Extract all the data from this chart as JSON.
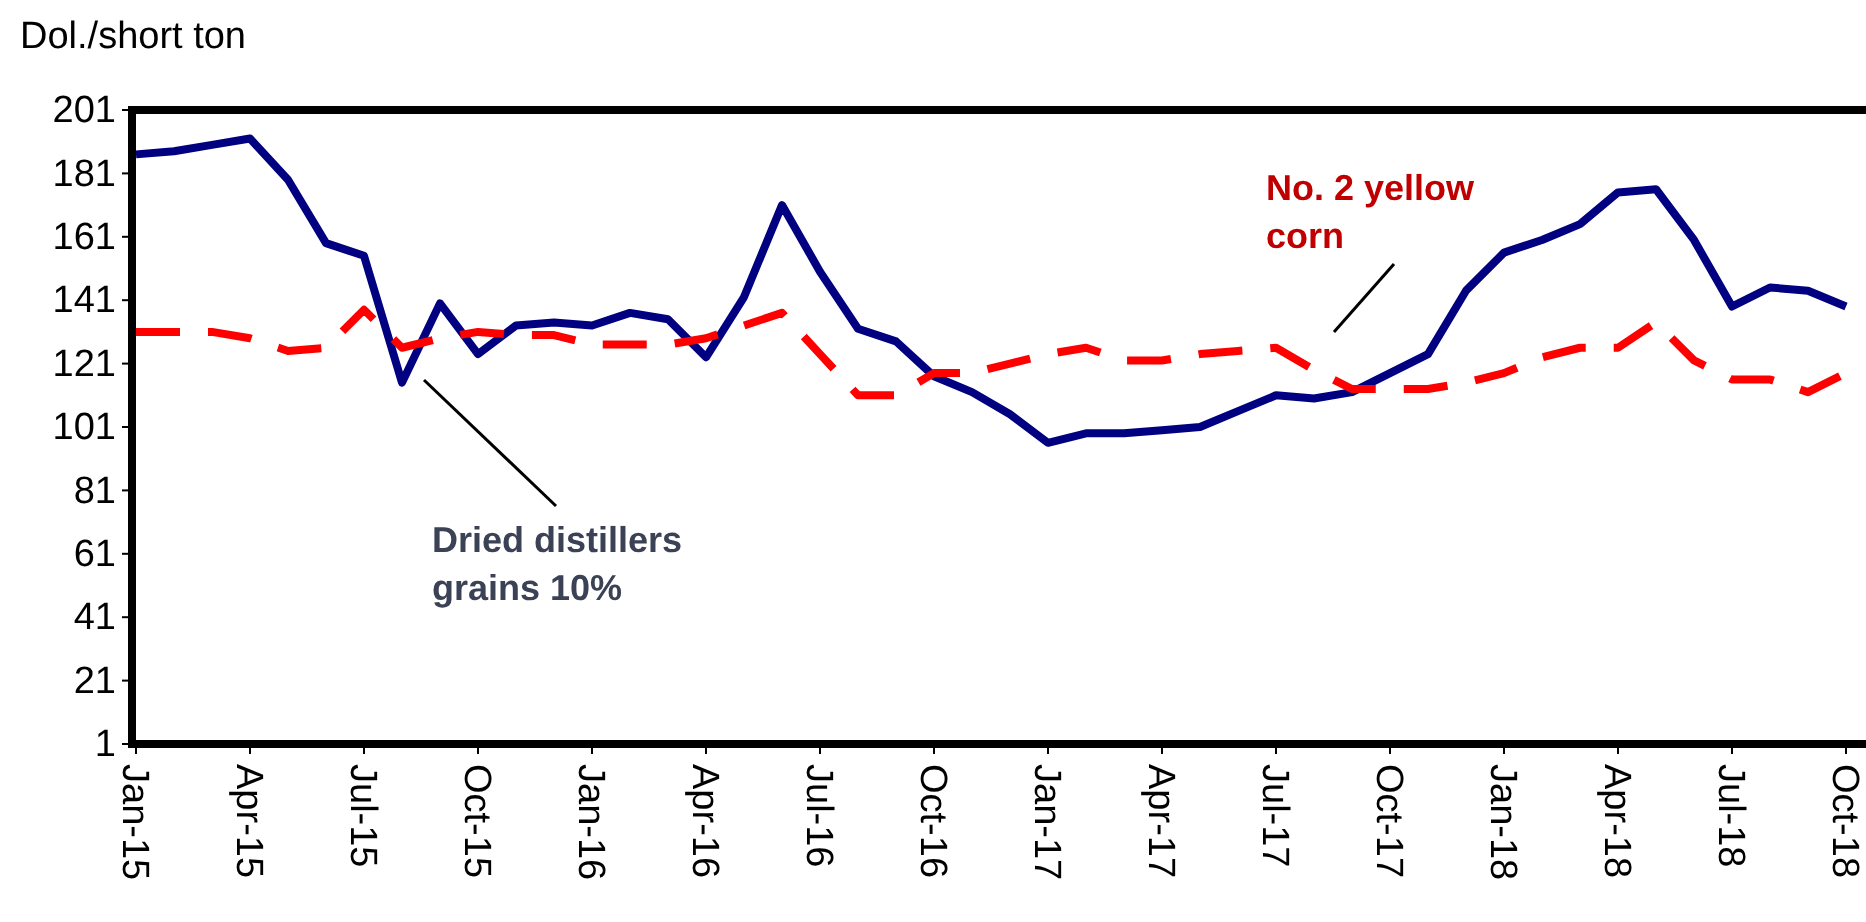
{
  "chart_data": {
    "type": "line",
    "ylabel": "Dol./short ton",
    "categories": [
      "Jan-15",
      null,
      null,
      "Apr-15",
      null,
      null,
      "Jul-15",
      null,
      null,
      "Oct-15",
      null,
      null,
      "Jan-16",
      null,
      null,
      "Apr-16",
      null,
      null,
      "Jul-16",
      null,
      null,
      "Oct-16",
      null,
      null,
      "Jan-17",
      null,
      null,
      "Apr-17",
      null,
      null,
      "Jul-17",
      null,
      null,
      "Oct-17",
      null,
      null,
      "Jan-18",
      null,
      null,
      "Apr-18",
      null,
      null,
      "Jul-18",
      null,
      null,
      "Oct-18"
    ],
    "ylim": [
      1,
      201
    ],
    "yticks": [
      1,
      21,
      41,
      61,
      81,
      101,
      121,
      141,
      161,
      181,
      201
    ],
    "grid": false,
    "marker": "none",
    "series": [
      {
        "name": "Dried distillers grains 10%",
        "color": "#000080",
        "line_style": "solid",
        "values": [
          187,
          188,
          190,
          192,
          179,
          159,
          155,
          115,
          140,
          124,
          133,
          134,
          133,
          137,
          135,
          123,
          142,
          171,
          150,
          132,
          128,
          117,
          112,
          105,
          96,
          99,
          99,
          100,
          101,
          106,
          111,
          110,
          112,
          118,
          124,
          144,
          156,
          160,
          165,
          175,
          176,
          160,
          139,
          145,
          144,
          139
        ]
      },
      {
        "name": "No. 2 yellow corn",
        "color": "#ff0000",
        "line_style": "dashed",
        "values": [
          131,
          131,
          131,
          129,
          125,
          126,
          138,
          126,
          129,
          131,
          130,
          130,
          127,
          127,
          127,
          129,
          133,
          137,
          124,
          111,
          111,
          118,
          118,
          121,
          124,
          126,
          122,
          122,
          124,
          125,
          126,
          119,
          113,
          113,
          113,
          115,
          118,
          123,
          126,
          126,
          134,
          122,
          116,
          116,
          112,
          118
        ]
      }
    ]
  }
}
